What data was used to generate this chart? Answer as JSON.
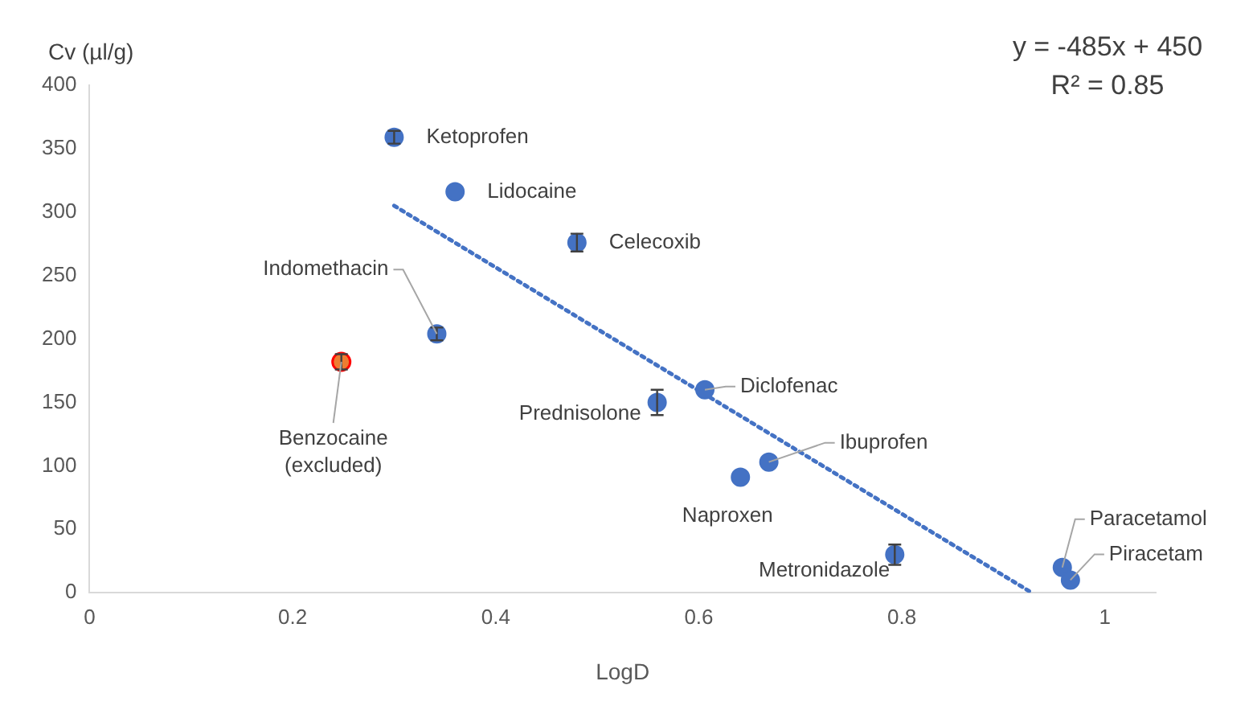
{
  "chart_data": {
    "type": "scatter",
    "xlabel": "LogD",
    "ylabel": "Cv (µl/g)",
    "xlim": [
      0,
      1.05
    ],
    "xticks": [
      0,
      0.2,
      0.4,
      0.6,
      0.8,
      1
    ],
    "ylim": [
      0,
      400
    ],
    "yticks": [
      0,
      50,
      100,
      150,
      200,
      250,
      300,
      350,
      400
    ],
    "grid": false,
    "legend": false,
    "marker": "circle",
    "series": [
      {
        "color": "#4472c4",
        "x": [
          0.3,
          0.36,
          0.48,
          0.342,
          0.559,
          0.606,
          0.669,
          0.641,
          0.793,
          0.958,
          0.966
        ],
        "values": [
          359,
          316,
          276,
          204,
          150,
          160,
          103,
          91,
          30,
          20,
          10
        ],
        "errors": [
          5,
          null,
          7,
          5,
          10,
          null,
          null,
          null,
          8,
          null,
          null
        ]
      },
      {
        "color": "#ed7d31",
        "x": [
          0.248
        ],
        "values": [
          182
        ],
        "errors": [
          6
        ]
      },
      {
        "type": "line",
        "color": "#4472c4",
        "line_style": "dotted",
        "marker": "none",
        "x": [
          0.3,
          0.928
        ],
        "values": [
          305,
          0
        ]
      }
    ],
    "annotations": [
      {
        "text": "Ketoprofen",
        "x": 0.3,
        "y": 359
      },
      {
        "text": "Lidocaine",
        "x": 0.36,
        "y": 316
      },
      {
        "text": "Celecoxib",
        "x": 0.48,
        "y": 276
      },
      {
        "text": "Indomethacin",
        "x": 0.342,
        "y": 204
      },
      {
        "text": "Benzocaine\n(excluded)",
        "x": 0.248,
        "y": 182
      },
      {
        "text": "Prednisolone",
        "x": 0.559,
        "y": 150
      },
      {
        "text": "Diclofenac",
        "x": 0.606,
        "y": 160
      },
      {
        "text": "Ibuprofen",
        "x": 0.669,
        "y": 103
      },
      {
        "text": "Naproxen",
        "x": 0.641,
        "y": 91
      },
      {
        "text": "Metronidazole",
        "x": 0.793,
        "y": 30
      },
      {
        "text": "Paracetamol",
        "x": 0.958,
        "y": 20
      },
      {
        "text": "Piracetam",
        "x": 0.966,
        "y": 10
      },
      "y = -485x + 450",
      "R² = 0.85"
    ]
  }
}
